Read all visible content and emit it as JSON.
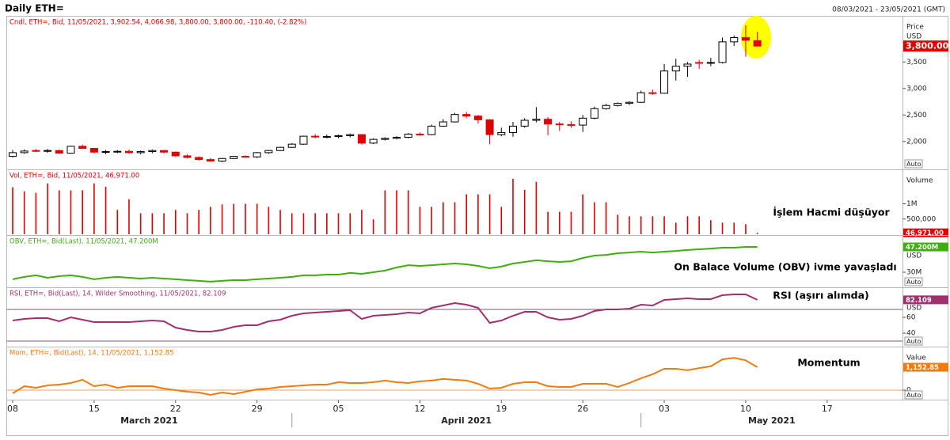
{
  "header": {
    "title": "Daily ETH=",
    "date_range": "08/03/2021 - 23/05/2021 (GMT)"
  },
  "chart_data": [
    {
      "type": "candlestick",
      "legend": "Cndl, ETH=, Bid, 11/05/2021, 3,902.54, 4,066.98, 3,800.00, 3,800.00, -110.40, (-2.82%)",
      "y_label": "Price",
      "y_unit": "USD",
      "button": "Auto",
      "last_value": {
        "value": 3800,
        "label": "3,800.00"
      },
      "up_color": "#ffffff",
      "down_color": "#e00000",
      "outline_color": "#000000",
      "ylim": [
        1490,
        4370
      ],
      "yticks": [
        {
          "value": 2000,
          "label": "2,000"
        },
        {
          "value": 2500,
          "label": "2,500"
        },
        {
          "value": 3000,
          "label": "3,000"
        },
        {
          "value": 3500,
          "label": "3,500"
        }
      ],
      "xlim": [
        "08/03/2021",
        "23/05/2021"
      ],
      "xticks": [
        {
          "value": "08/03/2021",
          "label": "08"
        },
        {
          "value": "15/03/2021",
          "label": "15"
        },
        {
          "value": "22/03/2021",
          "label": "22"
        },
        {
          "value": "29/03/2021",
          "label": "29"
        },
        {
          "value": "05/04/2021",
          "label": "05"
        },
        {
          "value": "12/04/2021",
          "label": "12"
        },
        {
          "value": "19/04/2021",
          "label": "19"
        },
        {
          "value": "26/04/2021",
          "label": "26"
        },
        {
          "value": "03/05/2021",
          "label": "03"
        },
        {
          "value": "10/05/2021",
          "label": "10"
        },
        {
          "value": "17/05/2021",
          "label": "17"
        }
      ],
      "month_labels": [
        {
          "value": "01/03/2021",
          "label": "March 2021"
        },
        {
          "value": "01/04/2021",
          "label": "April 2021"
        },
        {
          "value": "01/05/2021",
          "label": "May 2021"
        }
      ],
      "x": [
        "08/03/2021",
        "09/03/2021",
        "10/03/2021",
        "11/03/2021",
        "12/03/2021",
        "13/03/2021",
        "14/03/2021",
        "15/03/2021",
        "16/03/2021",
        "17/03/2021",
        "18/03/2021",
        "19/03/2021",
        "20/03/2021",
        "21/03/2021",
        "22/03/2021",
        "23/03/2021",
        "24/03/2021",
        "25/03/2021",
        "26/03/2021",
        "27/03/2021",
        "28/03/2021",
        "29/03/2021",
        "30/03/2021",
        "31/03/2021",
        "01/04/2021",
        "02/04/2021",
        "03/04/2021",
        "04/04/2021",
        "05/04/2021",
        "06/04/2021",
        "07/04/2021",
        "08/04/2021",
        "09/04/2021",
        "10/04/2021",
        "11/04/2021",
        "12/04/2021",
        "13/04/2021",
        "14/04/2021",
        "15/04/2021",
        "16/04/2021",
        "17/04/2021",
        "18/04/2021",
        "19/04/2021",
        "20/04/2021",
        "21/04/2021",
        "22/04/2021",
        "23/04/2021",
        "24/04/2021",
        "25/04/2021",
        "26/04/2021",
        "27/04/2021",
        "28/04/2021",
        "29/04/2021",
        "30/04/2021",
        "01/05/2021",
        "02/05/2021",
        "03/05/2021",
        "04/05/2021",
        "05/05/2021",
        "06/05/2021",
        "07/05/2021",
        "08/05/2021",
        "09/05/2021",
        "10/05/2021",
        "11/05/2021"
      ],
      "open": [
        1720,
        1790,
        1830,
        1825,
        1830,
        1780,
        1910,
        1870,
        1800,
        1810,
        1815,
        1790,
        1810,
        1830,
        1800,
        1730,
        1700,
        1660,
        1630,
        1680,
        1720,
        1710,
        1790,
        1830,
        1890,
        1950,
        2100,
        2090,
        2095,
        2110,
        2130,
        1970,
        2040,
        2060,
        2080,
        2140,
        2130,
        2290,
        2370,
        2510,
        2480,
        2410,
        2130,
        2170,
        2290,
        2400,
        2420,
        2330,
        2320,
        2310,
        2440,
        2620,
        2680,
        2720,
        2740,
        2920,
        2910,
        3330,
        3420,
        3490,
        3480,
        3490,
        3880,
        3960,
        3902.54
      ],
      "high": [
        1840,
        1850,
        1860,
        1860,
        1850,
        1920,
        1940,
        1880,
        1840,
        1840,
        1850,
        1830,
        1850,
        1840,
        1810,
        1760,
        1720,
        1690,
        1690,
        1730,
        1740,
        1800,
        1840,
        1900,
        1970,
        2110,
        2140,
        2130,
        2130,
        2150,
        2140,
        2060,
        2080,
        2100,
        2160,
        2170,
        2320,
        2420,
        2540,
        2560,
        2500,
        2420,
        2260,
        2370,
        2440,
        2650,
        2460,
        2370,
        2380,
        2500,
        2660,
        2710,
        2740,
        2760,
        2960,
        2980,
        3460,
        3560,
        3500,
        3540,
        3580,
        3960,
        4000,
        4190,
        4066.98
      ],
      "low": [
        1700,
        1770,
        1800,
        1790,
        1770,
        1770,
        1860,
        1780,
        1760,
        1780,
        1770,
        1760,
        1780,
        1780,
        1710,
        1680,
        1640,
        1620,
        1610,
        1670,
        1700,
        1690,
        1770,
        1820,
        1880,
        1940,
        2060,
        2060,
        2060,
        2080,
        1940,
        1950,
        2020,
        2040,
        2060,
        2110,
        2120,
        2280,
        2360,
        2440,
        2340,
        1950,
        2100,
        2090,
        2260,
        2360,
        2120,
        2200,
        2260,
        2180,
        2420,
        2600,
        2660,
        2690,
        2730,
        2880,
        2900,
        3150,
        3220,
        3370,
        3420,
        3470,
        3800,
        3600,
        3800
      ],
      "close": [
        1790,
        1820,
        1825,
        1830,
        1780,
        1910,
        1870,
        1800,
        1810,
        1815,
        1790,
        1810,
        1830,
        1800,
        1730,
        1700,
        1660,
        1630,
        1680,
        1720,
        1710,
        1790,
        1830,
        1890,
        1950,
        2100,
        2090,
        2095,
        2110,
        2130,
        1970,
        2040,
        2060,
        2080,
        2140,
        2130,
        2290,
        2370,
        2510,
        2480,
        2410,
        2130,
        2170,
        2290,
        2400,
        2420,
        2330,
        2320,
        2310,
        2440,
        2620,
        2680,
        2720,
        2740,
        2920,
        2910,
        3330,
        3420,
        3460,
        3480,
        3490,
        3880,
        3960,
        3910,
        3800
      ]
    },
    {
      "type": "bar",
      "legend": "Vol, ETH=, Bid, 11/05/2021, 46,971.00",
      "y_label": "Volume",
      "color": "#e00000",
      "last_value": {
        "value": 46971,
        "label": "46,971.00"
      },
      "annotation": "İşlem Hacmi düşüyor",
      "ylim": [
        0,
        2130000
      ],
      "yticks": [
        {
          "value": 500000,
          "label": "500,000"
        },
        {
          "value": 1000000,
          "label": "1M"
        }
      ],
      "values": [
        1540000,
        1410000,
        1360000,
        1670000,
        1440000,
        1440000,
        1440000,
        1670000,
        1560000,
        800000,
        1150000,
        690000,
        690000,
        690000,
        800000,
        690000,
        800000,
        900000,
        980000,
        1000000,
        1000000,
        1000000,
        900000,
        800000,
        690000,
        690000,
        690000,
        690000,
        690000,
        690000,
        800000,
        490000,
        1440000,
        1440000,
        1440000,
        900000,
        900000,
        1050000,
        1050000,
        1310000,
        1310000,
        1310000,
        900000,
        1820000,
        1460000,
        1720000,
        740000,
        740000,
        740000,
        1310000,
        1050000,
        1050000,
        640000,
        590000,
        590000,
        590000,
        590000,
        380000,
        590000,
        590000,
        460000,
        380000,
        380000,
        330000,
        46971
      ]
    },
    {
      "type": "line",
      "legend": "OBV, ETH=, Bid(Last), 11/05/2021, 47.200M",
      "y_unit": "USD",
      "button": "Auto",
      "color": "#3fae0f",
      "last_value": {
        "value": 47.2,
        "label": "47.200M"
      },
      "annotation": "On Balace Volume (OBV) ivme yavaşladı",
      "ylim": [
        20.3,
        55.3
      ],
      "yticks": [
        {
          "value": 30,
          "label": "30M"
        }
      ],
      "values": [
        25.2,
        26.8,
        27.9,
        26.2,
        27.3,
        27.9,
        26.8,
        25.2,
        26.2,
        26.8,
        26.2,
        25.7,
        26.2,
        25.7,
        25.2,
        24.6,
        24.1,
        23.6,
        24.1,
        24.6,
        24.6,
        25.2,
        25.7,
        26.2,
        26.8,
        27.9,
        27.9,
        28.4,
        28.4,
        29.5,
        28.9,
        30.0,
        31.1,
        33.2,
        34.8,
        34.3,
        34.8,
        35.4,
        35.9,
        35.4,
        34.3,
        32.7,
        33.8,
        35.9,
        37.0,
        38.1,
        37.5,
        37.0,
        37.5,
        39.7,
        41.3,
        41.8,
        42.9,
        43.4,
        44.0,
        43.4,
        44.0,
        44.5,
        45.1,
        45.6,
        46.1,
        46.7,
        46.7,
        47.2,
        47.2
      ]
    },
    {
      "type": "line",
      "legend": "RSI, ETH=, Bid(Last), 14, Wilder Smoothing, 11/05/2021, 82.109",
      "y_unit": "USD",
      "button": "Auto",
      "color": "#a0306e",
      "hline_color": "#7a5a7a",
      "last_value": 82.109,
      "annotation": "RSI (aşırı alımda)",
      "ylim": [
        24,
        98
      ],
      "yticks": [
        40,
        60
      ],
      "hlines": [
        30,
        70
      ],
      "values": [
        56,
        58,
        59,
        59,
        55,
        60,
        57,
        54,
        54,
        54,
        54,
        55,
        56,
        55,
        47,
        44,
        42,
        42,
        44,
        48,
        50,
        50,
        55,
        57,
        62,
        65,
        66,
        67,
        68,
        69,
        58,
        62,
        63,
        64,
        66,
        65,
        72,
        75,
        78,
        76,
        72,
        53,
        56,
        62,
        67,
        67,
        60,
        57,
        58,
        62,
        68,
        70,
        70,
        71,
        76,
        75,
        82,
        83,
        84,
        83,
        83,
        88,
        89,
        89,
        82.109
      ]
    },
    {
      "type": "line",
      "legend": "Mom, ETH=, Bid(Last), 14, 11/05/2021, 1,152.85",
      "y_label": "Value",
      "button": "Auto",
      "color": "#f07c10",
      "hline_color": "#e8a060",
      "last_value": {
        "value": 1152.85,
        "label": "1,152.85"
      },
      "annotation": "Momentum",
      "ylim": [
        -478,
        2190
      ],
      "yticks": [
        0
      ],
      "hlines": [
        0
      ],
      "values": [
        -160,
        200,
        120,
        240,
        280,
        360,
        520,
        200,
        280,
        120,
        200,
        200,
        200,
        80,
        0,
        -80,
        -120,
        -240,
        -120,
        -200,
        -80,
        40,
        80,
        160,
        200,
        240,
        280,
        280,
        400,
        360,
        360,
        400,
        480,
        400,
        360,
        440,
        480,
        560,
        520,
        480,
        320,
        80,
        120,
        320,
        400,
        400,
        200,
        160,
        160,
        320,
        320,
        320,
        160,
        360,
        600,
        800,
        1075,
        1075,
        1000,
        1110,
        1200,
        1550,
        1630,
        1500,
        1152.85
      ]
    }
  ]
}
